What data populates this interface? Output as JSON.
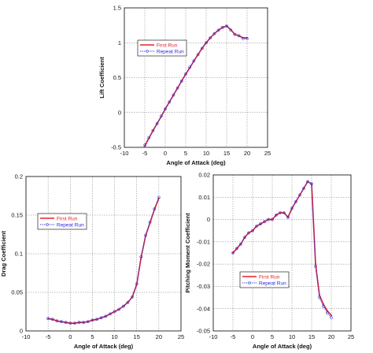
{
  "colors": {
    "first_run": "#e8202a",
    "repeat_run": "#2a2ad8",
    "grid": "#7a7a7a",
    "axis": "#000000"
  },
  "chart_data": [
    {
      "type": "line",
      "xlabel": "Angle of Attack (deg)",
      "ylabel": "Lift Coefficient",
      "xlim": [
        -10,
        25
      ],
      "ylim": [
        -0.5,
        1.5
      ],
      "xticks": [
        "-10",
        "-5",
        "0",
        "5",
        "10",
        "15",
        "20",
        "25"
      ],
      "yticks": [
        "-0.5",
        "0",
        "0.5",
        "1",
        "1.5"
      ],
      "grid": true,
      "legend_position": "upper-left",
      "series": [
        {
          "name": "First Run",
          "style": "solid",
          "x": [
            -5,
            -4,
            -3,
            -2,
            -1,
            0,
            1,
            2,
            3,
            4,
            5,
            6,
            7,
            8,
            9,
            10,
            11,
            12,
            13,
            14,
            15,
            16,
            17,
            18,
            19,
            20
          ],
          "y": [
            -0.48,
            -0.37,
            -0.26,
            -0.16,
            -0.06,
            0.05,
            0.15,
            0.25,
            0.35,
            0.45,
            0.55,
            0.64,
            0.74,
            0.83,
            0.92,
            1.0,
            1.07,
            1.13,
            1.18,
            1.22,
            1.24,
            1.19,
            1.12,
            1.1,
            1.07,
            1.07
          ]
        },
        {
          "name": "Repeat Run",
          "style": "dotted",
          "x": [
            -5,
            -4,
            -3,
            -2,
            -1,
            0,
            1,
            2,
            3,
            4,
            5,
            6,
            7,
            8,
            9,
            10,
            11,
            12,
            13,
            14,
            15,
            16,
            17,
            18,
            19,
            20
          ],
          "y": [
            -0.47,
            -0.36,
            -0.26,
            -0.16,
            -0.05,
            0.05,
            0.15,
            0.25,
            0.35,
            0.45,
            0.55,
            0.65,
            0.74,
            0.83,
            0.92,
            1.0,
            1.07,
            1.13,
            1.18,
            1.22,
            1.24,
            1.18,
            1.12,
            1.1,
            1.06,
            1.06
          ]
        }
      ]
    },
    {
      "type": "line",
      "xlabel": "Angle of Attack (deg)",
      "ylabel": "Drag Coefficient",
      "xlim": [
        -10,
        25
      ],
      "ylim": [
        0,
        0.2
      ],
      "xticks": [
        "-10",
        "-5",
        "0",
        "5",
        "10",
        "15",
        "20",
        "25"
      ],
      "yticks": [
        "0",
        "0.05",
        "0.1",
        "0.15",
        "0.2"
      ],
      "grid": true,
      "legend_position": "center-left",
      "series": [
        {
          "name": "First Run",
          "style": "solid",
          "x": [
            -5,
            -4,
            -3,
            -2,
            -1,
            0,
            1,
            2,
            3,
            4,
            5,
            6,
            7,
            8,
            9,
            10,
            11,
            12,
            13,
            14,
            15,
            16,
            17,
            18,
            19,
            20
          ],
          "y": [
            0.016,
            0.015,
            0.013,
            0.012,
            0.011,
            0.01,
            0.01,
            0.011,
            0.011,
            0.012,
            0.014,
            0.015,
            0.017,
            0.019,
            0.022,
            0.025,
            0.028,
            0.032,
            0.037,
            0.044,
            0.06,
            0.095,
            0.123,
            0.14,
            0.157,
            0.172
          ]
        },
        {
          "name": "Repeat Run",
          "style": "dotted",
          "x": [
            -5,
            -4,
            -3,
            -2,
            -1,
            0,
            1,
            2,
            3,
            4,
            5,
            6,
            7,
            8,
            9,
            10,
            11,
            12,
            13,
            14,
            15,
            16,
            17,
            18,
            19,
            20
          ],
          "y": [
            0.016,
            0.015,
            0.013,
            0.012,
            0.011,
            0.01,
            0.01,
            0.011,
            0.011,
            0.012,
            0.014,
            0.015,
            0.017,
            0.019,
            0.022,
            0.025,
            0.028,
            0.032,
            0.037,
            0.044,
            0.061,
            0.096,
            0.124,
            0.141,
            0.158,
            0.173
          ]
        }
      ]
    },
    {
      "type": "line",
      "xlabel": "Angle of Attack (deg)",
      "ylabel": "Pitching Moment Coefficient",
      "xlim": [
        -10,
        25
      ],
      "ylim": [
        -0.05,
        0.02
      ],
      "xticks": [
        "-10",
        "-5",
        "0",
        "5",
        "10",
        "15",
        "20",
        "25"
      ],
      "yticks": [
        "-0.05",
        "-0.04",
        "-0.03",
        "-0.02",
        "-0.01",
        "0",
        "0.01",
        "0.02"
      ],
      "grid": true,
      "legend_position": "lower-left",
      "series": [
        {
          "name": "First Run",
          "style": "solid",
          "x": [
            -5,
            -4,
            -3,
            -2,
            -1,
            0,
            1,
            2,
            3,
            4,
            5,
            6,
            7,
            8,
            9,
            10,
            11,
            12,
            13,
            14,
            15,
            16,
            17,
            18,
            19,
            20
          ],
          "y": [
            -0.015,
            -0.013,
            -0.011,
            -0.008,
            -0.006,
            -0.005,
            -0.003,
            -0.002,
            -0.001,
            0.0,
            0.0,
            0.002,
            0.003,
            0.003,
            0.001,
            0.005,
            0.008,
            0.011,
            0.014,
            0.017,
            0.016,
            -0.02,
            -0.034,
            -0.038,
            -0.041,
            -0.043
          ]
        },
        {
          "name": "Repeat Run",
          "style": "dotted",
          "x": [
            -5,
            -4,
            -3,
            -2,
            -1,
            0,
            1,
            2,
            3,
            4,
            5,
            6,
            7,
            8,
            9,
            10,
            11,
            12,
            13,
            14,
            15,
            16,
            17,
            18,
            19,
            20
          ],
          "y": [
            -0.015,
            -0.013,
            -0.011,
            -0.008,
            -0.006,
            -0.005,
            -0.003,
            -0.002,
            -0.001,
            0.0,
            0.0,
            0.002,
            0.003,
            0.003,
            0.001,
            0.005,
            0.008,
            0.011,
            0.014,
            0.017,
            0.016,
            -0.021,
            -0.035,
            -0.039,
            -0.042,
            -0.044
          ]
        }
      ]
    }
  ]
}
